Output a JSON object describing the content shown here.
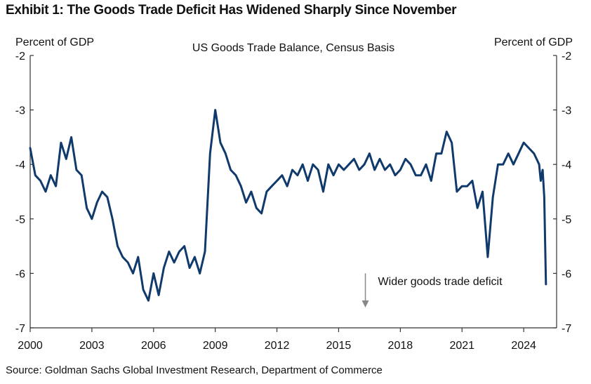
{
  "exhibit_title": "Exhibit 1: The Goods Trade Deficit Has Widened Sharply Since November",
  "source": "Source: Goldman Sachs Global Investment Research, Department of Commerce",
  "colors": {
    "line": "#0f3a6b",
    "axis": "#333333",
    "arrow": "#888888"
  },
  "chart_data": {
    "type": "line",
    "title": "US Goods Trade Balance, Census Basis",
    "ylabel_left": "Percent of GDP",
    "ylabel_right": "Percent of GDP",
    "xlim": [
      2000,
      2025.6
    ],
    "ylim": [
      -7,
      -2
    ],
    "yticks": [
      -2,
      -3,
      -4,
      -5,
      -6,
      -7
    ],
    "ytick_labels": [
      "-2",
      "-3",
      "-4",
      "-5",
      "-6",
      "-7"
    ],
    "xticks": [
      2000,
      2003,
      2006,
      2009,
      2012,
      2015,
      2018,
      2021,
      2024
    ],
    "xtick_labels": [
      "2000",
      "2003",
      "2006",
      "2009",
      "2012",
      "2015",
      "2018",
      "2021",
      "2024"
    ],
    "annotation": {
      "text": "Wider goods trade deficit",
      "x": 2016.3,
      "y_from": -6.0,
      "y_to": -6.6
    },
    "series": [
      {
        "name": "US goods trade balance (% of GDP)",
        "x": [
          2000.0,
          2000.25,
          2000.5,
          2000.75,
          2001.0,
          2001.25,
          2001.5,
          2001.75,
          2002.0,
          2002.25,
          2002.5,
          2002.75,
          2003.0,
          2003.25,
          2003.5,
          2003.75,
          2004.0,
          2004.25,
          2004.5,
          2004.75,
          2005.0,
          2005.25,
          2005.5,
          2005.75,
          2006.0,
          2006.25,
          2006.5,
          2006.75,
          2007.0,
          2007.25,
          2007.5,
          2007.75,
          2008.0,
          2008.25,
          2008.5,
          2008.75,
          2009.0,
          2009.25,
          2009.5,
          2009.75,
          2010.0,
          2010.25,
          2010.5,
          2010.75,
          2011.0,
          2011.25,
          2011.5,
          2011.75,
          2012.0,
          2012.25,
          2012.5,
          2012.75,
          2013.0,
          2013.25,
          2013.5,
          2013.75,
          2014.0,
          2014.25,
          2014.5,
          2014.75,
          2015.0,
          2015.25,
          2015.5,
          2015.75,
          2016.0,
          2016.25,
          2016.5,
          2016.75,
          2017.0,
          2017.25,
          2017.5,
          2017.75,
          2018.0,
          2018.25,
          2018.5,
          2018.75,
          2019.0,
          2019.25,
          2019.5,
          2019.75,
          2020.0,
          2020.25,
          2020.5,
          2020.75,
          2021.0,
          2021.25,
          2021.5,
          2021.75,
          2022.0,
          2022.25,
          2022.5,
          2022.75,
          2023.0,
          2023.25,
          2023.5,
          2023.75,
          2024.0,
          2024.25,
          2024.5,
          2024.75,
          2024.83,
          2024.92,
          2025.0,
          2025.08
        ],
        "values": [
          -3.7,
          -4.2,
          -4.3,
          -4.5,
          -4.2,
          -4.4,
          -3.6,
          -3.9,
          -3.5,
          -4.1,
          -4.2,
          -4.8,
          -5.0,
          -4.7,
          -4.5,
          -4.6,
          -5.0,
          -5.5,
          -5.7,
          -5.8,
          -6.0,
          -5.7,
          -6.3,
          -6.5,
          -6.0,
          -6.4,
          -5.9,
          -5.6,
          -5.8,
          -5.6,
          -5.5,
          -5.9,
          -5.7,
          -6.0,
          -5.6,
          -3.8,
          -3.0,
          -3.6,
          -3.8,
          -4.1,
          -4.2,
          -4.4,
          -4.7,
          -4.5,
          -4.8,
          -4.9,
          -4.5,
          -4.4,
          -4.3,
          -4.2,
          -4.4,
          -4.1,
          -4.2,
          -4.0,
          -4.3,
          -4.0,
          -4.1,
          -4.5,
          -4.0,
          -4.2,
          -4.0,
          -4.1,
          -4.0,
          -3.9,
          -4.1,
          -4.0,
          -3.8,
          -4.1,
          -3.9,
          -4.1,
          -4.0,
          -4.2,
          -4.1,
          -3.9,
          -4.0,
          -4.2,
          -4.2,
          -4.0,
          -4.3,
          -3.8,
          -3.8,
          -3.4,
          -3.6,
          -4.5,
          -4.4,
          -4.4,
          -4.3,
          -4.8,
          -4.5,
          -5.7,
          -4.6,
          -4.0,
          -4.0,
          -3.8,
          -4.0,
          -3.8,
          -3.6,
          -3.7,
          -3.8,
          -4.0,
          -4.3,
          -4.1,
          -4.6,
          -6.2
        ]
      }
    ]
  }
}
